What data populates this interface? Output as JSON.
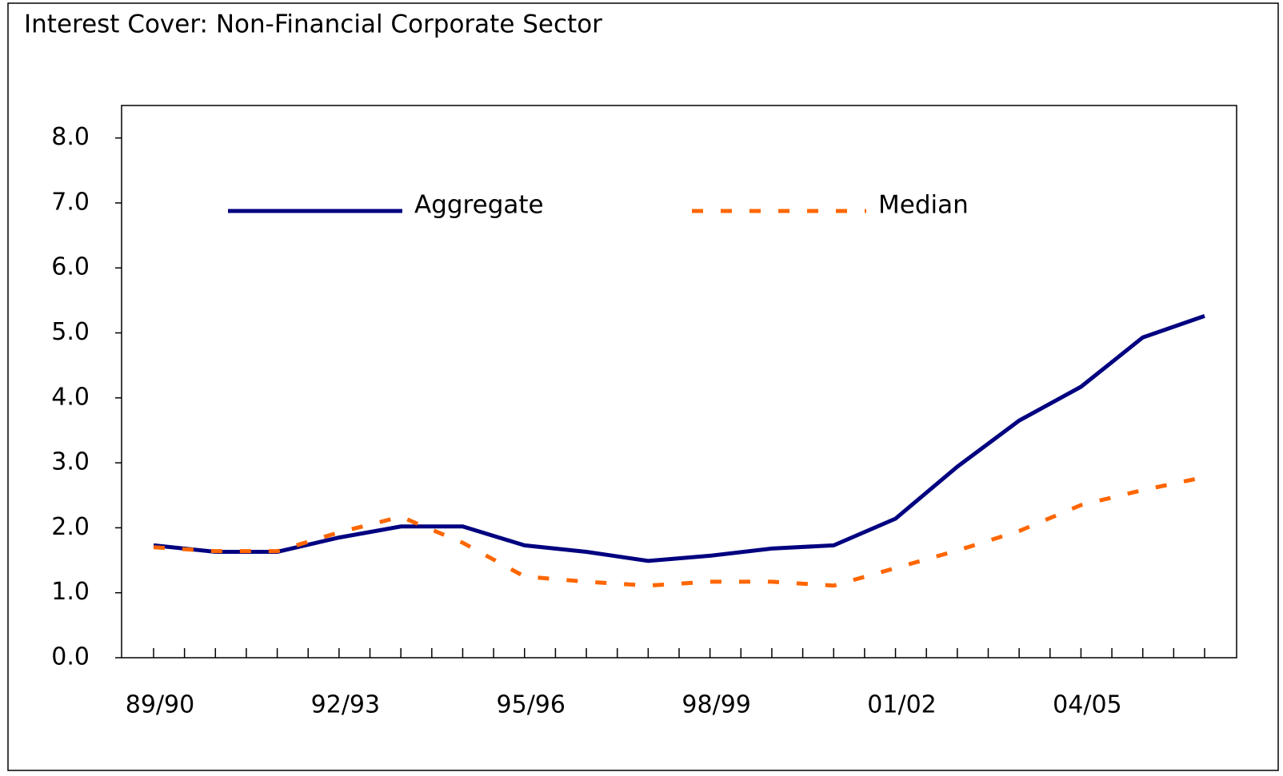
{
  "chart_data": {
    "type": "line",
    "title": "Interest Cover: Non-Financial Corporate Sector",
    "categories": [
      "89/90",
      null,
      null,
      "92/93",
      null,
      null,
      "95/96",
      null,
      null,
      "98/99",
      null,
      null,
      "01/02",
      null,
      null,
      "04/05",
      null,
      null
    ],
    "series": [
      {
        "name": "Aggregate",
        "color": "#000080",
        "dash": false,
        "values": [
          1.73,
          1.63,
          1.63,
          1.85,
          2.02,
          2.02,
          1.73,
          1.63,
          1.49,
          1.57,
          1.68,
          1.73,
          2.14,
          2.94,
          3.65,
          4.17,
          4.93,
          5.26
        ]
      },
      {
        "name": "Median",
        "color": "#ff6600",
        "dash": true,
        "values": [
          1.7,
          1.64,
          1.64,
          1.93,
          2.17,
          1.77,
          1.25,
          1.17,
          1.11,
          1.17,
          1.17,
          1.11,
          1.38,
          1.65,
          1.95,
          2.35,
          2.58,
          2.78
        ]
      }
    ],
    "ylim": [
      0,
      8.5
    ],
    "yticks": [
      {
        "value": 0,
        "label": "0.0"
      },
      {
        "value": 1,
        "label": "1.0"
      },
      {
        "value": 2,
        "label": "2.0"
      },
      {
        "value": 3,
        "label": "3.0"
      },
      {
        "value": 4,
        "label": "4.0"
      },
      {
        "value": 5,
        "label": "5.0"
      },
      {
        "value": 6,
        "label": "6.0"
      },
      {
        "value": 7,
        "label": "7.0"
      },
      {
        "value": 8,
        "label": "8.0"
      }
    ],
    "grid": false,
    "legend": "top"
  }
}
